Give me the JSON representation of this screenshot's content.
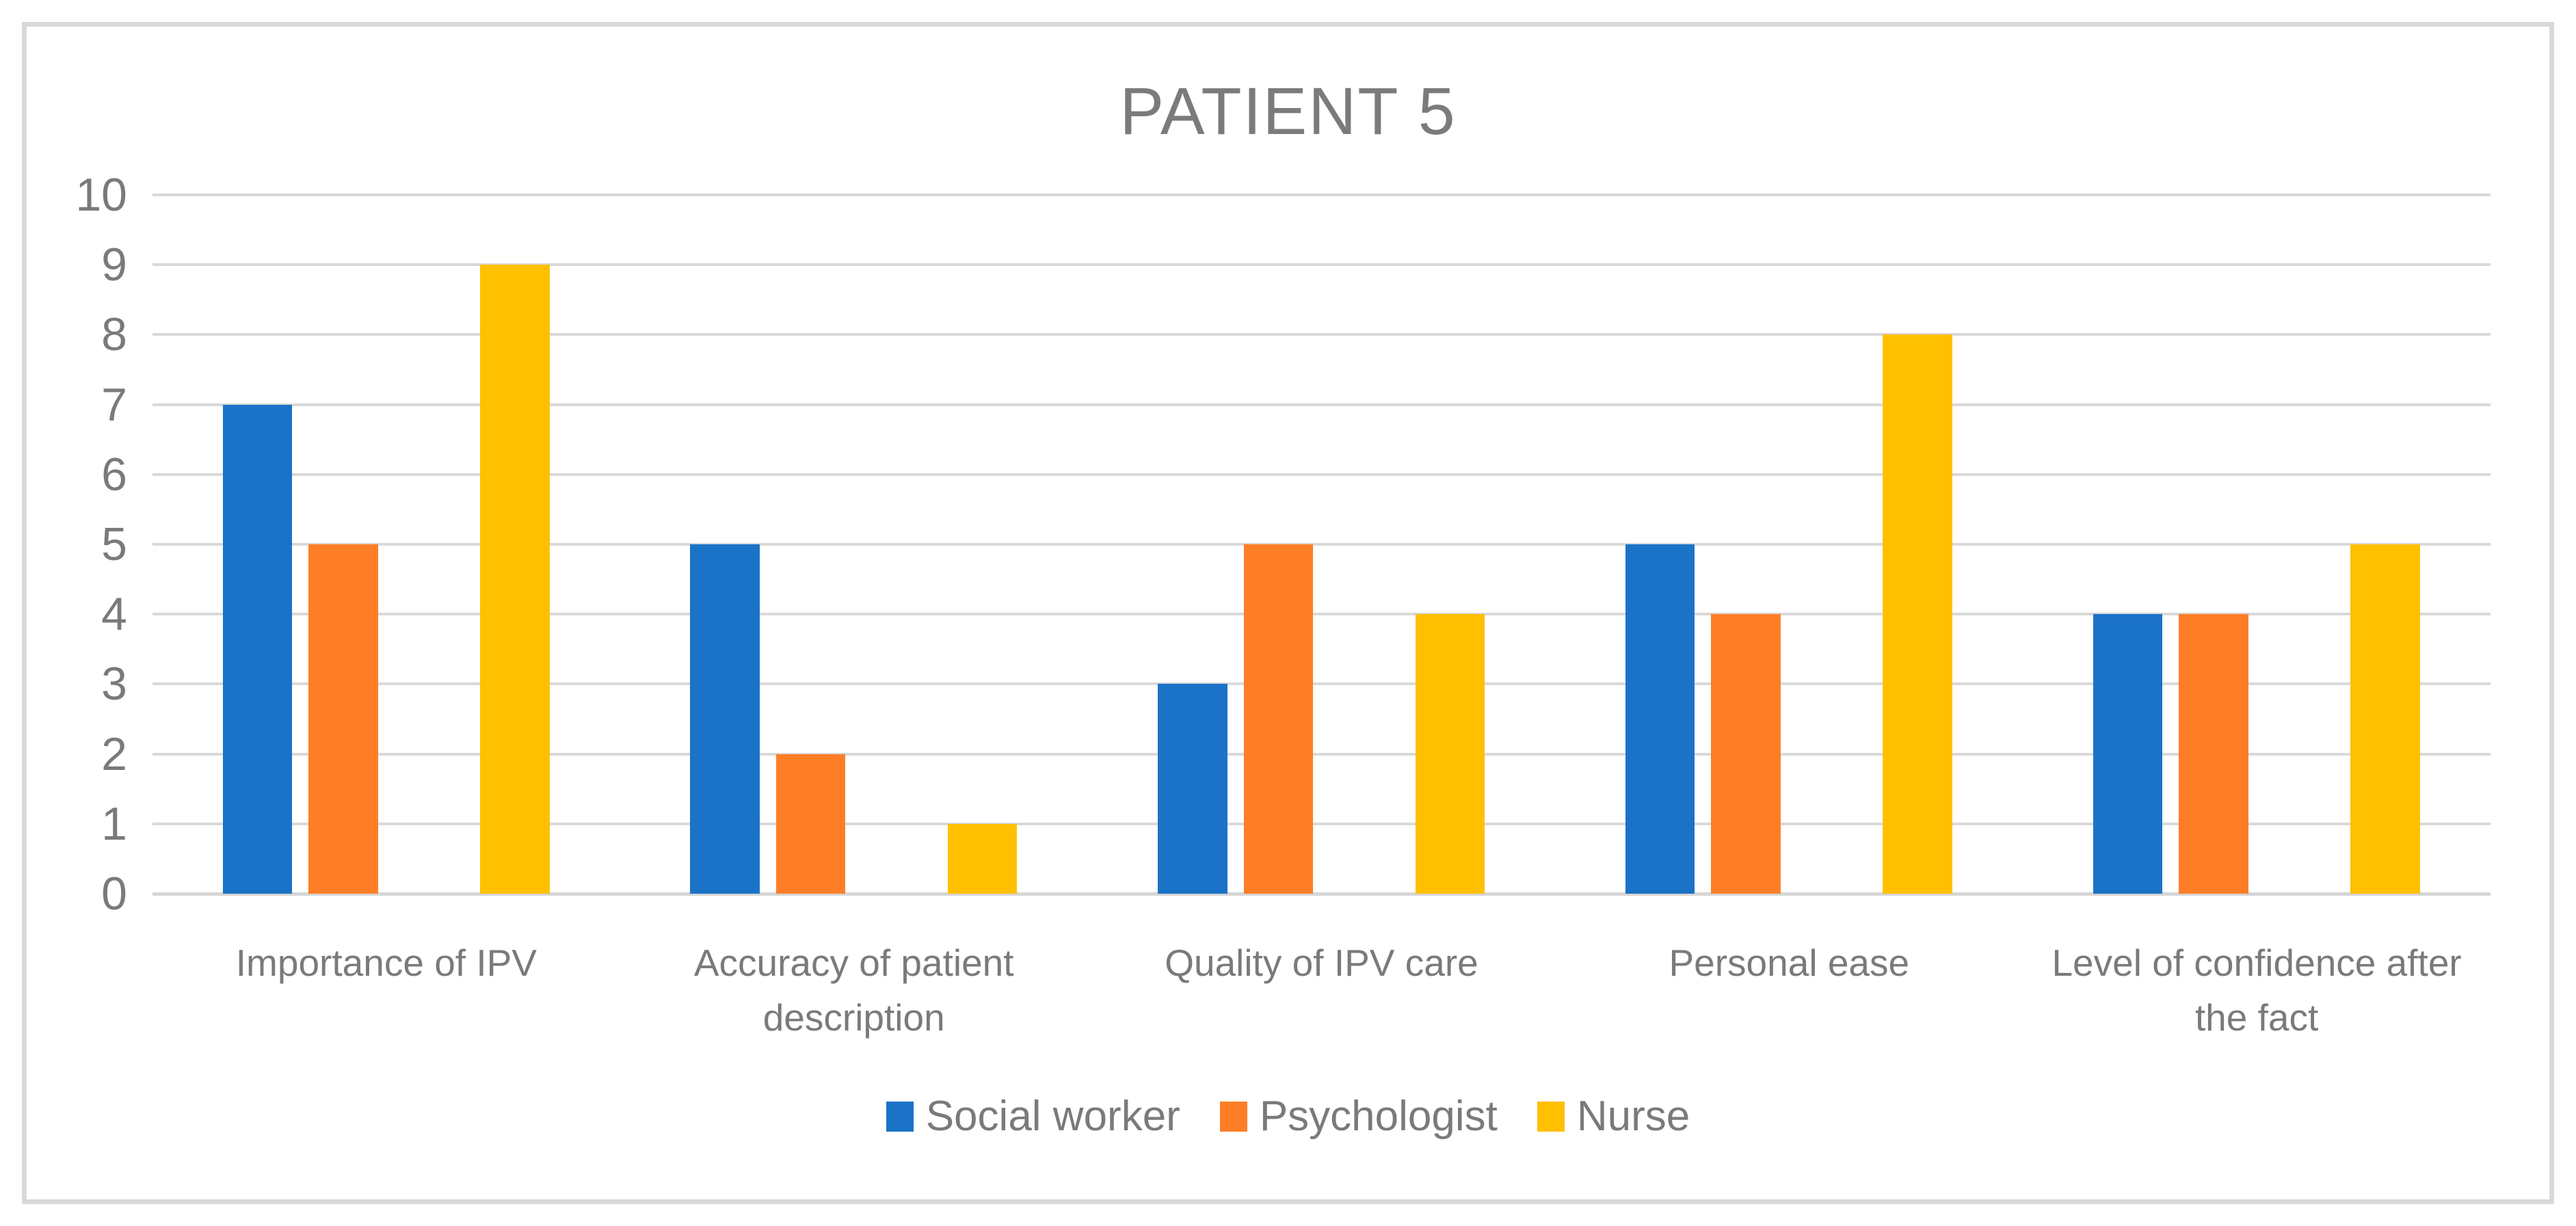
{
  "chart_data": {
    "type": "bar",
    "title": "PATIENT 5",
    "categories": [
      "Importance of IPV",
      "Accuracy of patient description",
      "Quality of IPV care",
      "Personal ease",
      "Level of confidence after the fact"
    ],
    "series": [
      {
        "name": "Social worker",
        "color": "#1B73C7",
        "values": [
          7,
          5,
          3,
          5,
          4
        ]
      },
      {
        "name": "Psychologist",
        "color": "#FD7E27",
        "values": [
          5,
          2,
          5,
          4,
          4
        ]
      },
      {
        "name": "Nurse",
        "color": "#FFC000",
        "values": [
          9,
          1,
          4,
          8,
          5
        ]
      }
    ],
    "ylim": [
      0,
      10
    ],
    "y_step": 1,
    "y_tick_labels": [
      "0",
      "1",
      "2",
      "3",
      "4",
      "5",
      "6",
      "7",
      "8",
      "9",
      "10"
    ],
    "xlabel": "",
    "ylabel": "",
    "grid": true,
    "legend_position": "bottom"
  },
  "style": {
    "grid_color": "#D9D9D9",
    "axis_line_color": "#D6D6D6",
    "border_color": "#D9D9D9",
    "text_color": "#7A7A7A",
    "title_color": "#7B7B7B",
    "background": "#FFFFFF"
  }
}
